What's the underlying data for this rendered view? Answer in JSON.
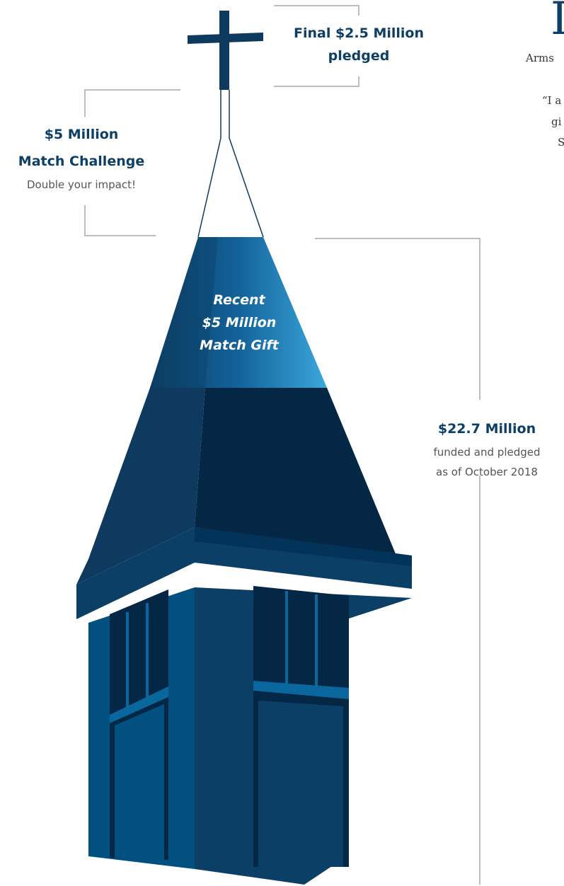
{
  "labels": {
    "final_pledge": [
      "Final $2.5 Million",
      "pledged"
    ],
    "match_challenge": {
      "amount": "$5 Million",
      "title": "Match Challenge",
      "note": "Double your impact!"
    },
    "match_gift": [
      "Recent",
      "$5 Million",
      "Match Gift"
    ],
    "funded": {
      "amount": "$22.7 Million",
      "lines": [
        "funded and pledged",
        "as of October 2018"
      ]
    }
  },
  "side_text": {
    "initial": "I",
    "lines": [
      "Arms",
      "“I a",
      "gi",
      "S"
    ]
  }
}
